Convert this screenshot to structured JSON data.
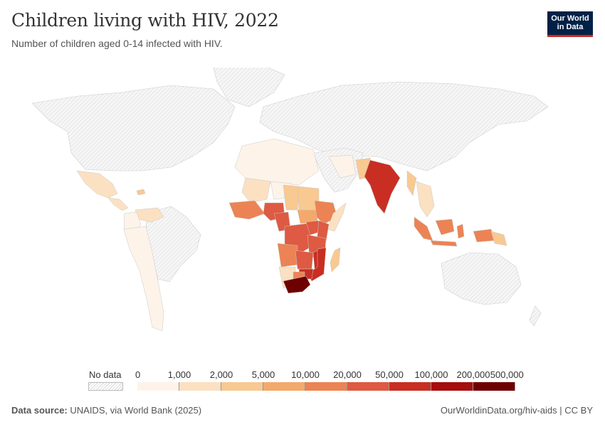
{
  "header": {
    "title": "Children living with HIV, 2022",
    "subtitle": "Number of children aged 0-14 infected with HIV."
  },
  "logo": {
    "line1": "Our World",
    "line2": "in Data"
  },
  "legend": {
    "nodata_label": "No data",
    "ticks": [
      "0",
      "1,000",
      "2,000",
      "5,000",
      "10,000",
      "20,000",
      "50,000",
      "100,000",
      "200,000",
      "500,000"
    ],
    "colors": [
      "#fdf3e9",
      "#fbe1c1",
      "#f8c991",
      "#f3a96c",
      "#ec8354",
      "#de5a42",
      "#c92e23",
      "#a60d0d",
      "#6e0000"
    ]
  },
  "footer": {
    "source_label": "Data source:",
    "source_text": "UNAIDS, via World Bank (2025)",
    "credit": "OurWorldinData.org/hiv-aids | CC BY"
  },
  "map": {
    "nodata_color": "#efefef",
    "regions": [
      {
        "name": "Mexico",
        "bin": 1
      },
      {
        "name": "Central America",
        "bin": 1
      },
      {
        "name": "Haiti",
        "bin": 2
      },
      {
        "name": "Venezuela",
        "bin": 1
      },
      {
        "name": "Colombia",
        "bin": 1
      },
      {
        "name": "South America",
        "bin": 0
      },
      {
        "name": "North Africa",
        "bin": 0
      },
      {
        "name": "Niger",
        "bin": 0
      },
      {
        "name": "Mali",
        "bin": 1
      },
      {
        "name": "Sudan",
        "bin": 1
      },
      {
        "name": "Chad",
        "bin": 2
      },
      {
        "name": "Nigeria",
        "bin": 5
      },
      {
        "name": "West Africa coast",
        "bin": 4
      },
      {
        "name": "Cameroon",
        "bin": 5
      },
      {
        "name": "South Sudan",
        "bin": 3
      },
      {
        "name": "Ethiopia",
        "bin": 4
      },
      {
        "name": "Kenya",
        "bin": 5
      },
      {
        "name": "DR Congo",
        "bin": 5
      },
      {
        "name": "Uganda",
        "bin": 5
      },
      {
        "name": "Tanzania",
        "bin": 5
      },
      {
        "name": "Angola",
        "bin": 4
      },
      {
        "name": "Zambia",
        "bin": 5
      },
      {
        "name": "Mozambique",
        "bin": 6
      },
      {
        "name": "Zimbabwe",
        "bin": 6
      },
      {
        "name": "Malawi",
        "bin": 6
      },
      {
        "name": "Namibia",
        "bin": 1
      },
      {
        "name": "Botswana",
        "bin": 4
      },
      {
        "name": "South Africa",
        "bin": 8
      },
      {
        "name": "Madagascar",
        "bin": 2
      },
      {
        "name": "Somalia",
        "bin": 1
      },
      {
        "name": "Middle East",
        "bin": 0
      },
      {
        "name": "Afghanistan",
        "bin": 0
      },
      {
        "name": "Pakistan",
        "bin": 2
      },
      {
        "name": "India",
        "bin": 6
      },
      {
        "name": "Myanmar",
        "bin": 2
      },
      {
        "name": "Southeast Asia",
        "bin": 1
      },
      {
        "name": "Sumatra",
        "bin": 4
      },
      {
        "name": "Borneo",
        "bin": 4
      },
      {
        "name": "Java",
        "bin": 4
      },
      {
        "name": "Papua",
        "bin": 4
      },
      {
        "name": "Papua New Guinea",
        "bin": 2
      }
    ]
  }
}
